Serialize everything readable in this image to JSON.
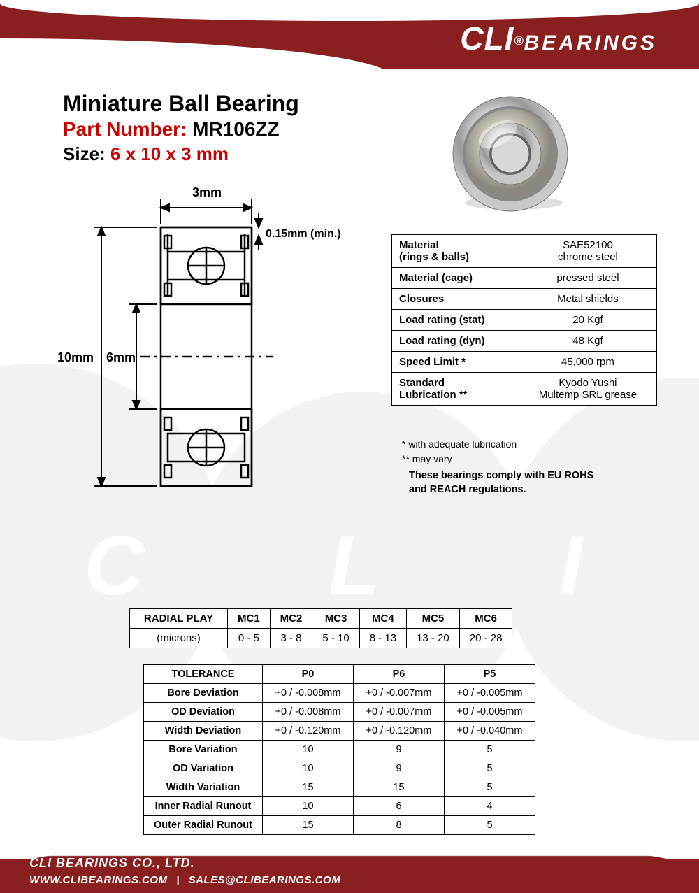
{
  "brand": {
    "name_part1": "CLI",
    "registered": "®",
    "name_part2": "BEARINGS",
    "accent_color": "#8a1f1f"
  },
  "title": {
    "line1": "Miniature Ball Bearing",
    "line2_label": "Part Number:",
    "line2_value": "MR106ZZ",
    "line3_label": "Size:",
    "line3_value": "6 x 10 x 3 mm",
    "red_color": "#cc0000"
  },
  "diagram": {
    "width_label": "3mm",
    "chamfer_label": "0.15mm (min.)",
    "od_label": "10mm",
    "bore_label": "6mm"
  },
  "specs": {
    "rows": [
      {
        "label": "Material\n(rings & balls)",
        "value": "SAE52100\nchrome steel"
      },
      {
        "label": "Material (cage)",
        "value": "pressed steel"
      },
      {
        "label": "Closures",
        "value": "Metal shields"
      },
      {
        "label": "Load rating (stat)",
        "value": "20 Kgf"
      },
      {
        "label": "Load rating (dyn)",
        "value": "48 Kgf"
      },
      {
        "label": "Speed Limit *",
        "value": "45,000 rpm"
      },
      {
        "label": "Standard\nLubrication  **",
        "value": "Kyodo Yushi\nMultemp SRL grease"
      }
    ],
    "note1": "*  with adequate lubrication",
    "note2": "** may vary",
    "compliance": "These bearings comply with EU ROHS\nand REACH  regulations."
  },
  "radial_play": {
    "header_label": "RADIAL PLAY",
    "unit_label": "(microns)",
    "cols": [
      "MC1",
      "MC2",
      "MC3",
      "MC4",
      "MC5",
      "MC6"
    ],
    "values": [
      "0 - 5",
      "3 - 8",
      "5 - 10",
      "8 - 13",
      "13 - 20",
      "20 - 28"
    ]
  },
  "tolerance": {
    "header_label": "TOLERANCE",
    "cols": [
      "P0",
      "P6",
      "P5"
    ],
    "rows": [
      {
        "label": "Bore Deviation",
        "v": [
          "+0 / -0.008mm",
          "+0 / -0.007mm",
          "+0 / -0.005mm"
        ]
      },
      {
        "label": "OD Deviation",
        "v": [
          "+0 / -0.008mm",
          "+0 / -0.007mm",
          "+0 / -0.005mm"
        ]
      },
      {
        "label": "Width Deviation",
        "v": [
          "+0 / -0.120mm",
          "+0 / -0.120mm",
          "+0 / -0.040mm"
        ]
      },
      {
        "label": "Bore Variation",
        "v": [
          "10",
          "9",
          "5"
        ]
      },
      {
        "label": "OD Variation",
        "v": [
          "10",
          "9",
          "5"
        ]
      },
      {
        "label": "Width Variation",
        "v": [
          "15",
          "15",
          "5"
        ]
      },
      {
        "label": "Inner Radial Runout",
        "v": [
          "10",
          "6",
          "4"
        ]
      },
      {
        "label": "Outer Radial Runout",
        "v": [
          "15",
          "8",
          "5"
        ]
      }
    ]
  },
  "footer": {
    "company": "CLI BEARINGS CO., LTD.",
    "website": "WWW.CLIBEARINGS.COM",
    "email": "SALES@CLIBEARINGS.COM"
  },
  "watermark": {
    "bg_color": "#f3f1f1",
    "letter_color": "#ffffff",
    "letters": [
      "C",
      "L",
      "I"
    ]
  }
}
